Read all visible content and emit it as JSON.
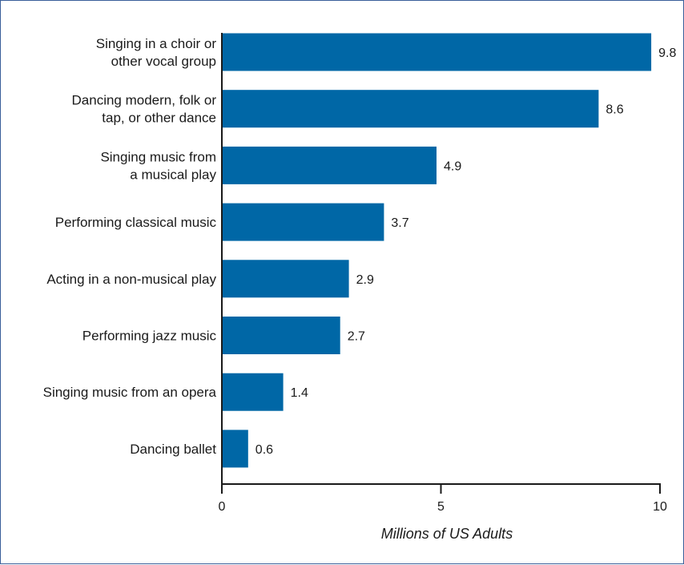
{
  "colors": {
    "bar": "#0067a6",
    "axis": "#1a1a1a",
    "border": "#3a5f9a"
  },
  "chart_data": {
    "type": "bar",
    "orientation": "horizontal",
    "categories": [
      [
        "Singing in a choir or",
        "other vocal group"
      ],
      [
        "Dancing modern, folk or",
        "tap, or other dance"
      ],
      [
        "Singing music from",
        "a musical play"
      ],
      [
        "Performing classical music"
      ],
      [
        "Acting in a non-musical play"
      ],
      [
        "Performing jazz music"
      ],
      [
        "Singing music from an opera"
      ],
      [
        "Dancing ballet"
      ]
    ],
    "values": [
      9.8,
      8.6,
      4.9,
      3.7,
      2.9,
      2.7,
      1.4,
      0.6
    ],
    "value_labels": [
      "9.8",
      "8.6",
      "4.9",
      "3.7",
      "2.9",
      "2.7",
      "1.4",
      "0.6"
    ],
    "xlabel": "Millions of US Adults",
    "xlim": [
      0,
      10
    ],
    "xticks": [
      0,
      5,
      10
    ],
    "xtick_labels": [
      "0",
      "5",
      "10"
    ],
    "grid": false,
    "legend": "none"
  }
}
